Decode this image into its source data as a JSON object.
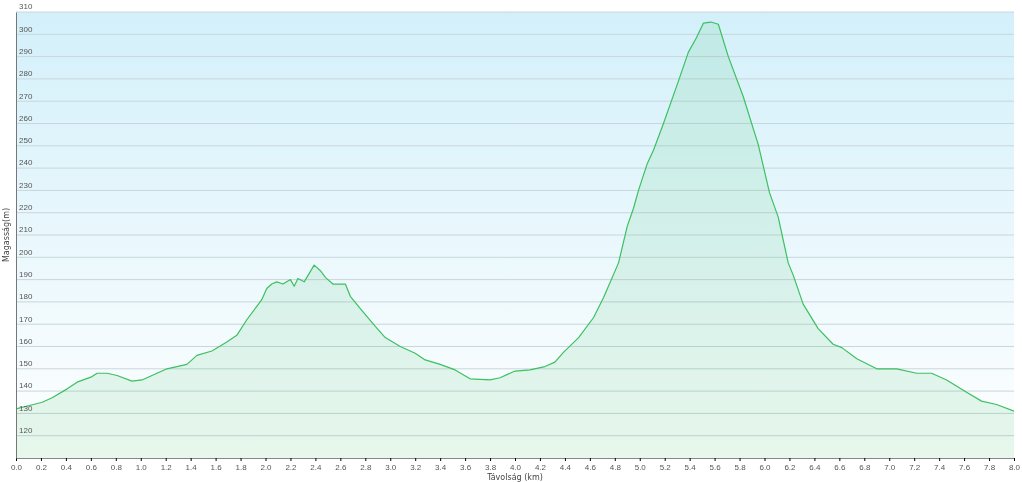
{
  "chart_data": {
    "type": "area",
    "xlabel": "Távolság (km)",
    "ylabel": "Magasság(m)",
    "x": [
      0,
      0.14,
      0.21,
      0.29,
      0.41,
      0.49,
      0.61,
      0.65,
      0.73,
      0.81,
      0.93,
      1.01,
      1.09,
      1.21,
      1.29,
      1.37,
      1.45,
      1.57,
      1.69,
      1.77,
      1.85,
      1.93,
      1.97,
      2.01,
      2.05,
      2.09,
      2.14,
      2.2,
      2.23,
      2.26,
      2.31,
      2.39,
      2.44,
      2.48,
      2.54,
      2.59,
      2.64,
      2.68,
      2.76,
      2.88,
      2.96,
      3.08,
      3.2,
      3.28,
      3.4,
      3.52,
      3.64,
      3.8,
      3.88,
      4.0,
      4.12,
      4.24,
      4.32,
      4.39,
      4.51,
      4.63,
      4.71,
      4.83,
      4.9,
      4.95,
      4.99,
      5.06,
      5.11,
      5.19,
      5.31,
      5.39,
      5.45,
      5.51,
      5.57,
      5.63,
      5.71,
      5.83,
      5.95,
      6.04,
      6.11,
      6.19,
      6.23,
      6.31,
      6.43,
      6.55,
      6.62,
      6.74,
      6.9,
      7.06,
      7.22,
      7.34,
      7.46,
      7.62,
      7.74,
      7.86,
      8.0
    ],
    "series": [
      {
        "color": "#3cc060",
        "values": [
          132,
          134,
          135,
          137,
          141,
          144,
          146.5,
          148,
          148,
          147,
          144.5,
          145,
          147,
          150,
          151,
          152,
          156,
          158,
          162,
          165,
          172,
          178,
          181,
          186,
          188,
          189,
          188,
          190,
          187,
          190.5,
          189,
          196.5,
          194,
          191,
          188,
          188,
          188,
          182.5,
          177,
          169,
          164,
          160,
          157,
          154,
          152,
          149.5,
          145.5,
          145,
          146,
          149,
          149.5,
          151,
          153,
          157.5,
          164,
          173,
          182,
          197.5,
          214,
          222,
          230,
          242,
          248,
          260,
          279,
          292,
          298,
          305,
          305.5,
          304.5,
          290,
          272,
          250.5,
          229,
          218,
          197.5,
          192,
          179,
          168,
          161,
          159.5,
          154.5,
          150,
          150,
          148,
          148,
          145,
          139.5,
          135.5,
          134,
          131
        ]
      }
    ],
    "xlim": [
      0,
      8
    ],
    "xticks": [
      {
        "value": 0,
        "label": "0.0"
      },
      0.2,
      0.4,
      0.6,
      0.8,
      {
        "value": 1,
        "label": "1.0"
      },
      1.2,
      1.4,
      1.6,
      1.8,
      {
        "value": 2,
        "label": "2.0"
      },
      2.2,
      2.4,
      2.6,
      2.8,
      {
        "value": 3,
        "label": "3.0"
      },
      3.2,
      3.4,
      3.6,
      3.8,
      {
        "value": 4,
        "label": "4.0"
      },
      4.2,
      4.4,
      4.6,
      4.8,
      {
        "value": 5,
        "label": "5.0"
      },
      5.2,
      5.4,
      5.6,
      5.8,
      {
        "value": 6,
        "label": "6.0"
      },
      6.2,
      6.4,
      6.6,
      6.8,
      {
        "value": 7,
        "label": "7.0"
      },
      7.2,
      7.4,
      7.6,
      7.8,
      {
        "value": 8,
        "label": "8.0"
      }
    ],
    "ylim": [
      110,
      310
    ],
    "yticks": [
      120,
      130,
      140,
      150,
      160,
      170,
      180,
      190,
      200,
      210,
      220,
      230,
      240,
      250,
      260,
      270,
      280,
      290,
      300,
      310
    ],
    "grid": "y",
    "marker": "none"
  }
}
